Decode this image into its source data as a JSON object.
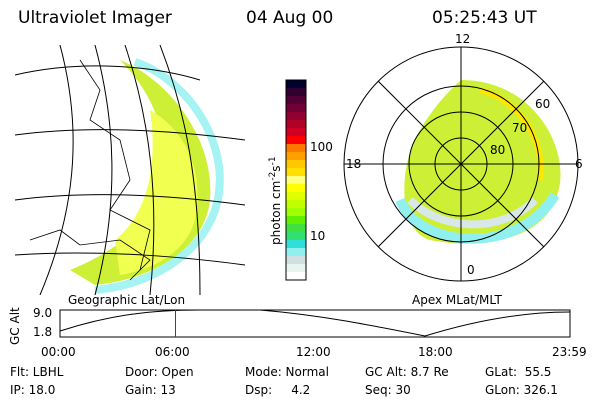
{
  "header": {
    "instrument": "Ultraviolet Imager",
    "date": "04 Aug 00",
    "time": "05:25:43 UT"
  },
  "left_panel": {
    "label": "Geographic Lat/Lon"
  },
  "right_panel": {
    "label": "Apex MLat/MLT",
    "mlt_labels": [
      "12",
      "18",
      "6",
      "0"
    ],
    "lat_labels": [
      "60",
      "70",
      "80"
    ]
  },
  "colorbar": {
    "unit": "photon cm",
    "exp1": "-2",
    "s": "s",
    "exp2": "-1",
    "ticks": [
      "100",
      "10"
    ],
    "colors": [
      "#000030",
      "#300030",
      "#500035",
      "#700035",
      "#900030",
      "#b00025",
      "#d00025",
      "#ff0000",
      "#ff7800",
      "#ffa000",
      "#ffc800",
      "#ffe000",
      "#ffff80",
      "#ffff00",
      "#e0ff00",
      "#c0ff00",
      "#a0ff00",
      "#60f000",
      "#40e040",
      "#30e070",
      "#30e0d8",
      "#90f0f0",
      "#d0e0e0",
      "#e8f4f0",
      "#ffffff"
    ]
  },
  "timeline": {
    "ylabel": "GC Alt",
    "y_ticks": [
      "9.0",
      "1.8"
    ],
    "x_ticks": [
      "00:00",
      "06:00",
      "12:00",
      "18:00",
      "23:59"
    ],
    "current_time_hours": 5.43,
    "marker_color": "#e00000"
  },
  "info": {
    "row1": [
      "Flt: LBHL",
      "Door: Open",
      "Mode: Normal",
      "GC Alt: 8.7 Re",
      "GLat:  55.5"
    ],
    "row2": [
      "IP: 18.0",
      "Gain: 13",
      "Dsp:     4.2",
      "Seq: 30",
      "GLon: 326.1"
    ]
  }
}
